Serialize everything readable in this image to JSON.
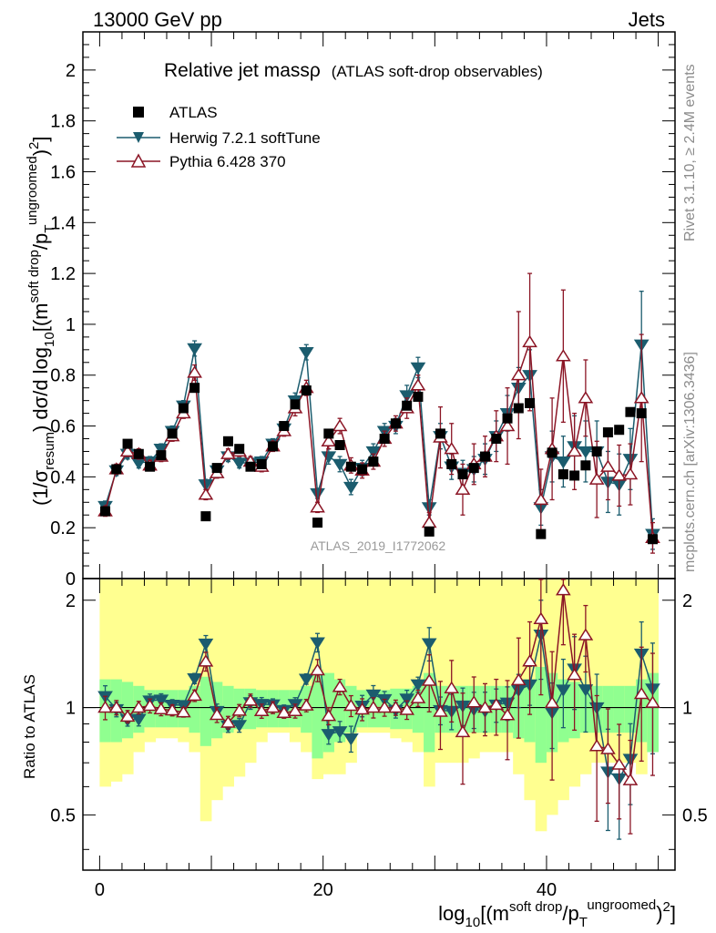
{
  "header": {
    "left": "13000 GeV pp",
    "right": "Jets"
  },
  "side": {
    "rivet": "Rivet 3.1.10, ≥ 2.4M events",
    "mcplots": "mcplots.cern.ch [arXiv:1306.3436]"
  },
  "chart_data": {
    "type": "scatter",
    "title": "Relative jet massρ",
    "subtitle": "(ATLAS soft-drop observables)",
    "watermark": "ATLAS_2019_I1772062",
    "ylabel": {
      "a": "(1/σ",
      "b": "resum",
      "c": ") dσ/d log",
      "d": "10",
      "e": "[(m",
      "f": "soft drop",
      "g": "/p",
      "h": "T",
      "i": "ungroomed",
      "j": "2",
      "k": ")",
      "l": "]"
    },
    "xlabel": {
      "a": "log",
      "b": "10",
      "c": "[(m",
      "d": "soft drop",
      "e": "/p",
      "f": "T",
      "g": "ungroomed",
      "h": ")",
      "i": "2",
      "j": "]"
    },
    "ratio_ylabel": "Ratio to ATLAS",
    "xlim": [
      -1.5,
      51.5
    ],
    "ylim": [
      0,
      2.15
    ],
    "ratio_ylim": [
      0.35,
      2.3
    ],
    "xticks": [
      0,
      20,
      40
    ],
    "yticks": [
      "0",
      "0.2",
      "0.4",
      "0.6",
      "0.8",
      "1",
      "1.2",
      "1.4",
      "1.6",
      "1.8",
      "2"
    ],
    "ratio_yticks": [
      "0.5",
      "1",
      "2"
    ],
    "legend": [
      "ATLAS",
      "Herwig 7.2.1 softTune",
      "Pythia 6.428 370"
    ],
    "colors": {
      "data": "#000000",
      "herwig": "#1b5c6e",
      "pythia": "#8b1525",
      "band_inner": "#90ff90",
      "band_outer": "#ffff90"
    },
    "x": [
      0.5,
      1.5,
      2.5,
      3.5,
      4.5,
      5.5,
      6.5,
      7.5,
      8.5,
      9.5,
      10.5,
      11.5,
      12.5,
      13.5,
      14.5,
      15.5,
      16.5,
      17.5,
      18.5,
      19.5,
      20.5,
      21.5,
      22.5,
      23.5,
      24.5,
      25.5,
      26.5,
      27.5,
      28.5,
      29.5,
      30.5,
      31.5,
      32.5,
      33.5,
      34.5,
      35.5,
      36.5,
      37.5,
      38.5,
      39.5,
      40.5,
      41.5,
      42.5,
      43.5,
      44.5,
      45.5,
      46.5,
      47.5,
      48.5,
      49.5
    ],
    "series": [
      {
        "name": "ATLAS",
        "values": [
          0.265,
          0.43,
          0.53,
          0.49,
          0.44,
          0.485,
          0.57,
          0.67,
          0.75,
          0.245,
          0.435,
          0.54,
          0.51,
          0.44,
          0.45,
          0.52,
          0.6,
          0.685,
          0.74,
          0.22,
          0.57,
          0.525,
          0.44,
          0.43,
          0.46,
          0.55,
          0.61,
          0.68,
          0.715,
          0.185,
          0.57,
          0.45,
          0.41,
          0.435,
          0.48,
          0.55,
          0.63,
          0.67,
          0.69,
          0.175,
          0.495,
          0.41,
          0.405,
          0.445,
          0.5,
          0.575,
          0.585,
          0.655,
          0.65,
          0.155
        ],
        "inner": [
          0.2,
          0.2,
          0.18,
          0.15,
          0.12,
          0.12,
          0.12,
          0.12,
          0.15,
          0.22,
          0.18,
          0.15,
          0.13,
          0.13,
          0.12,
          0.12,
          0.12,
          0.12,
          0.15,
          0.28,
          0.25,
          0.2,
          0.15,
          0.12,
          0.12,
          0.12,
          0.13,
          0.13,
          0.15,
          0.25,
          0.15,
          0.15,
          0.15,
          0.15,
          0.15,
          0.15,
          0.15,
          0.18,
          0.2,
          0.3,
          0.25,
          0.2,
          0.18,
          0.15,
          0.15,
          0.15,
          0.15,
          0.15,
          0.2,
          0.25
        ],
        "outer": [
          0.4,
          0.38,
          0.35,
          0.25,
          0.2,
          0.18,
          0.18,
          0.2,
          0.25,
          0.52,
          0.45,
          0.4,
          0.36,
          0.3,
          0.2,
          0.15,
          0.15,
          0.2,
          0.25,
          0.37,
          0.35,
          0.35,
          0.3,
          0.15,
          0.15,
          0.15,
          0.18,
          0.2,
          0.25,
          0.4,
          0.3,
          0.3,
          0.3,
          0.28,
          0.25,
          0.25,
          0.25,
          0.35,
          0.45,
          0.55,
          0.5,
          0.45,
          0.4,
          0.35,
          0.3,
          0.3,
          0.3,
          0.3,
          0.35,
          0.25
        ]
      },
      {
        "name": "Herwig 7.2.1 softTune",
        "values": [
          0.285,
          0.425,
          0.49,
          0.455,
          0.46,
          0.51,
          0.58,
          0.68,
          0.905,
          0.37,
          0.425,
          0.48,
          0.455,
          0.455,
          0.46,
          0.53,
          0.59,
          0.7,
          0.89,
          0.335,
          0.48,
          0.45,
          0.36,
          0.435,
          0.5,
          0.58,
          0.6,
          0.72,
          0.83,
          0.28,
          0.56,
          0.44,
          0.415,
          0.43,
          0.47,
          0.56,
          0.65,
          0.75,
          0.8,
          0.28,
          0.48,
          0.46,
          0.52,
          0.5,
          0.5,
          0.38,
          0.37,
          0.47,
          0.92,
          0.175
        ],
        "errors": [
          0.02,
          0.02,
          0.02,
          0.02,
          0.02,
          0.02,
          0.02,
          0.02,
          0.03,
          0.02,
          0.02,
          0.02,
          0.02,
          0.02,
          0.02,
          0.02,
          0.02,
          0.03,
          0.03,
          0.02,
          0.03,
          0.03,
          0.03,
          0.03,
          0.03,
          0.03,
          0.03,
          0.04,
          0.04,
          0.03,
          0.05,
          0.05,
          0.05,
          0.05,
          0.06,
          0.06,
          0.07,
          0.08,
          0.1,
          0.07,
          0.1,
          0.1,
          0.12,
          0.12,
          0.12,
          0.12,
          0.12,
          0.12,
          0.21,
          0.06
        ]
      },
      {
        "name": "Pythia 6.428 370",
        "values": [
          0.265,
          0.43,
          0.5,
          0.49,
          0.445,
          0.48,
          0.56,
          0.65,
          0.81,
          0.33,
          0.415,
          0.49,
          0.5,
          0.46,
          0.44,
          0.52,
          0.58,
          0.67,
          0.75,
          0.28,
          0.54,
          0.6,
          0.445,
          0.425,
          0.46,
          0.55,
          0.61,
          0.67,
          0.76,
          0.22,
          0.555,
          0.51,
          0.35,
          0.45,
          0.48,
          0.56,
          0.6,
          0.8,
          0.93,
          0.31,
          0.51,
          0.875,
          0.5,
          0.71,
          0.39,
          0.44,
          0.405,
          0.41,
          0.71,
          0.16
        ],
        "errors": [
          0.02,
          0.02,
          0.02,
          0.02,
          0.02,
          0.02,
          0.02,
          0.02,
          0.03,
          0.02,
          0.02,
          0.02,
          0.02,
          0.02,
          0.02,
          0.02,
          0.02,
          0.03,
          0.03,
          0.02,
          0.03,
          0.03,
          0.03,
          0.03,
          0.03,
          0.03,
          0.03,
          0.04,
          0.04,
          0.04,
          0.12,
          0.1,
          0.1,
          0.08,
          0.08,
          0.1,
          0.15,
          0.25,
          0.27,
          0.12,
          0.2,
          0.26,
          0.15,
          0.15,
          0.15,
          0.13,
          0.12,
          0.12,
          0.25,
          0.06
        ]
      }
    ]
  }
}
